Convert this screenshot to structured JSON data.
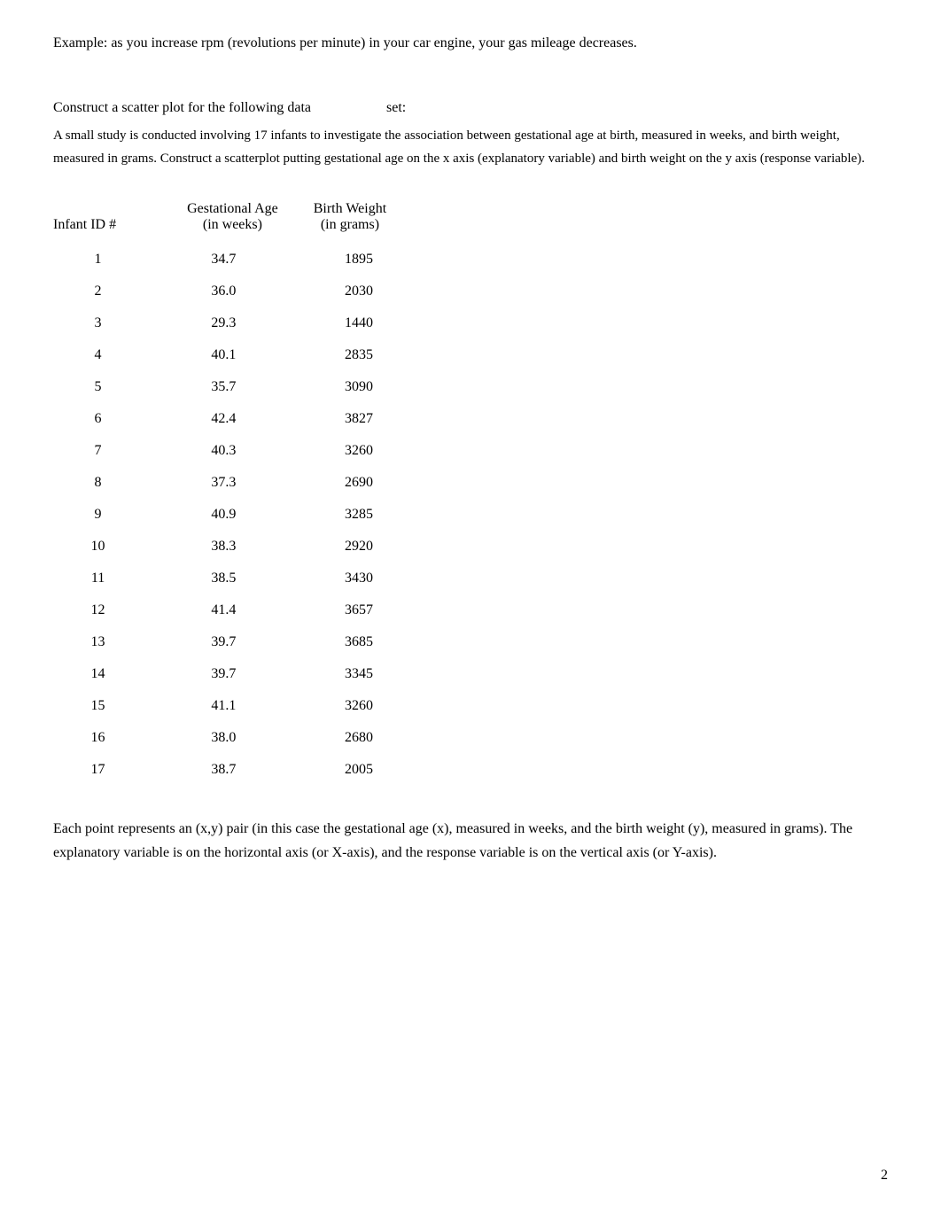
{
  "example_text": "Example: as you increase rpm (revolutions per minute) in your car engine, your gas mileage decreases.",
  "instruction_prefix": "Construct a scatter plot for the following data",
  "instruction_suffix": "set:",
  "study_description": "A small study is conducted involving 17 infants to investigate the association between gestational age at birth, measured in weeks, and birth weight, measured in grams. Construct a scatterplot putting gestational age on the x axis (explanatory variable) and birth weight on the y axis (response variable).",
  "table": {
    "headers": {
      "id": "Infant ID #",
      "age_line1": "Gestational Age",
      "age_line2": "(in weeks)",
      "weight_line1": "Birth Weight",
      "weight_line2": "(in grams)"
    },
    "rows": [
      {
        "id": "1",
        "age": "34.7",
        "weight": "1895"
      },
      {
        "id": "2",
        "age": "36.0",
        "weight": "2030"
      },
      {
        "id": "3",
        "age": "29.3",
        "weight": "1440"
      },
      {
        "id": "4",
        "age": "40.1",
        "weight": "2835"
      },
      {
        "id": "5",
        "age": "35.7",
        "weight": "3090"
      },
      {
        "id": "6",
        "age": "42.4",
        "weight": "3827"
      },
      {
        "id": "7",
        "age": "40.3",
        "weight": "3260"
      },
      {
        "id": "8",
        "age": "37.3",
        "weight": "2690"
      },
      {
        "id": "9",
        "age": "40.9",
        "weight": "3285"
      },
      {
        "id": "10",
        "age": "38.3",
        "weight": "2920"
      },
      {
        "id": "11",
        "age": "38.5",
        "weight": "3430"
      },
      {
        "id": "12",
        "age": "41.4",
        "weight": "3657"
      },
      {
        "id": "13",
        "age": "39.7",
        "weight": "3685"
      },
      {
        "id": "14",
        "age": "39.7",
        "weight": "3345"
      },
      {
        "id": "15",
        "age": "41.1",
        "weight": "3260"
      },
      {
        "id": "16",
        "age": "38.0",
        "weight": "2680"
      },
      {
        "id": "17",
        "age": "38.7",
        "weight": "2005"
      }
    ]
  },
  "closing_text": "Each point represents an (x,y) pair (in this case the gestational age (x), measured in weeks, and the birth weight (y), measured in grams). The explanatory variable is on the horizontal axis (or X-axis), and the response variable is on the vertical axis (or Y-axis).",
  "page_number": "2",
  "styling": {
    "font_family": "Times New Roman",
    "body_font_size": 16,
    "description_font_size": 15,
    "text_color": "#000000",
    "background_color": "#ffffff",
    "line_height": 1.7,
    "row_padding_vertical": 9
  }
}
